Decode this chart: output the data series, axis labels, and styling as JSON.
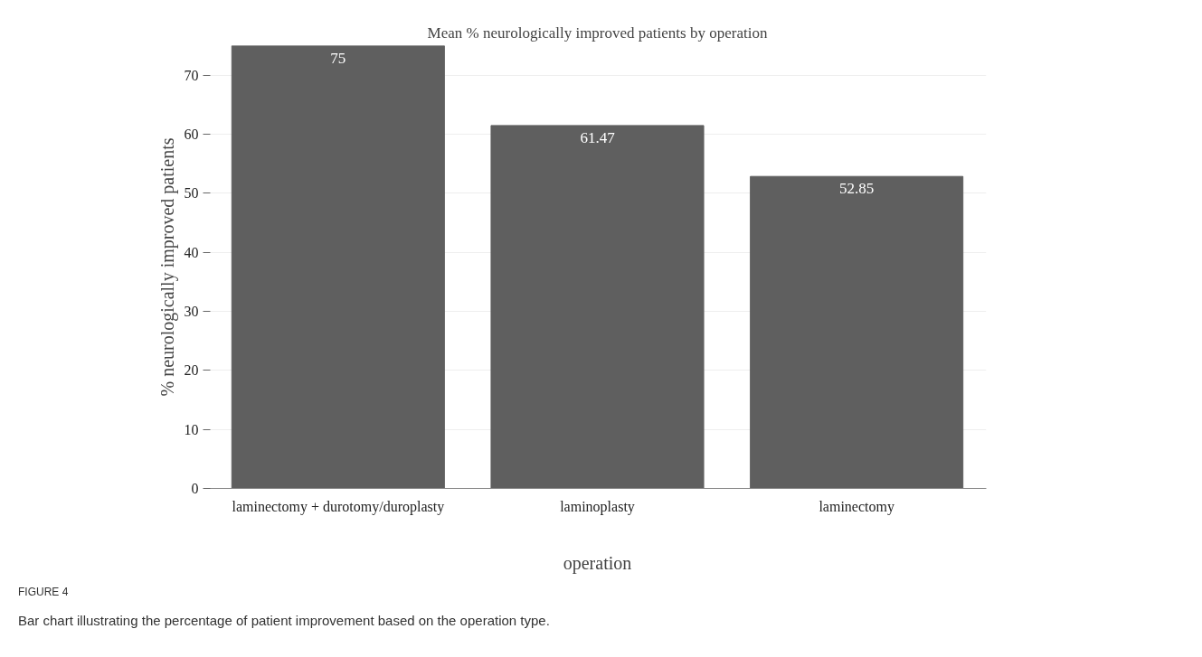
{
  "chart_data": {
    "type": "bar",
    "title": "Mean % neurologically improved patients by operation",
    "xlabel": "operation",
    "ylabel": "% neurologically improved patients",
    "categories": [
      "laminectomy + durotomy/duroplasty",
      "laminoplasty",
      "laminectomy"
    ],
    "values": [
      75,
      61.47,
      52.85
    ],
    "color": "#5f5f5f",
    "data_labels": true,
    "ylim": [
      0,
      75
    ],
    "yticks": [
      0,
      10,
      20,
      30,
      40,
      50,
      60,
      70
    ],
    "grid": "y",
    "annotations": [
      "FIGURE 4",
      "Bar chart illustrating the percentage of patient improvement based on the operation type."
    ]
  }
}
